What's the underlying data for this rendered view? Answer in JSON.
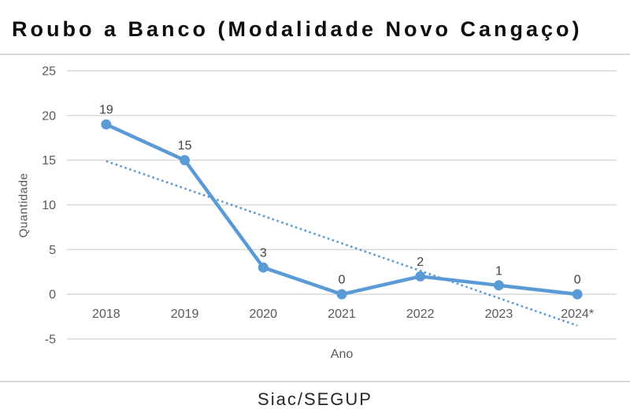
{
  "footer": {
    "source": "Siac/SEGUP"
  },
  "chart_data": {
    "type": "line",
    "title": "Roubo a Banco (Modalidade Novo Cangaço)",
    "categories": [
      "2018",
      "2019",
      "2020",
      "2021",
      "2022",
      "2023",
      "2024*"
    ],
    "series": [
      {
        "name": "Quantidade",
        "values": [
          19,
          15,
          3,
          0,
          2,
          1,
          0
        ]
      }
    ],
    "data_labels": [
      19,
      15,
      3,
      0,
      2,
      1,
      0
    ],
    "trendline": {
      "type": "linear",
      "style": "dotted",
      "start_value": 14.9,
      "end_value": -3.5
    },
    "xlabel": "Ano",
    "ylabel": "Quantidade",
    "ylim": [
      -5,
      25
    ],
    "ytick_step": 5,
    "grid": true,
    "legend": "none",
    "colors": {
      "series": "#5B9BD5",
      "trendline": "#5B9BD5",
      "grid": "#D9D9D9",
      "tick_label": "#595959",
      "data_label": "#404040",
      "title": "#0D0D0D",
      "divider": "#D9D9D9",
      "footer": "#262626",
      "background": "#FFFFFF"
    }
  }
}
